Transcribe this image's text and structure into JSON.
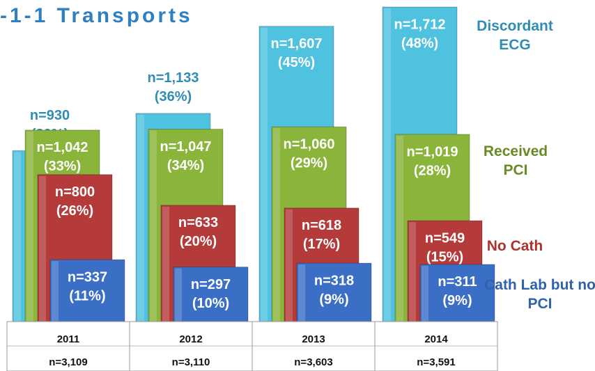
{
  "chart_data": {
    "type": "bar",
    "title": "-1-1 Transports",
    "categories": [
      "2011",
      "2012",
      "2013",
      "2014"
    ],
    "totals": [
      "n=3,109",
      "n=3,110",
      "n=3,603",
      "n=3,591"
    ],
    "ylim": [
      0,
      1750
    ],
    "series": [
      {
        "name": "Discordant ECG",
        "color": "#4fc2df",
        "label_color": "#2f8db3",
        "values": [
          930,
          1133,
          1607,
          1712
        ],
        "value_labels": [
          [
            "n=930",
            "(30%)"
          ],
          [
            "n=1,133",
            "(36%)"
          ],
          [
            "n=1,607",
            "(45%)"
          ],
          [
            "n=1,712",
            "(48%)"
          ]
        ]
      },
      {
        "name": "Received PCI",
        "color": "#8ab43a",
        "label_color": "#6a8a26",
        "values": [
          1042,
          1047,
          1060,
          1019
        ],
        "value_labels": [
          [
            "n=1,042",
            "(33%)"
          ],
          [
            "n=1,047",
            "(34%)"
          ],
          [
            "n=1,060",
            "(29%)"
          ],
          [
            "n=1,019",
            "(28%)"
          ]
        ]
      },
      {
        "name": "No Cath",
        "color": "#b53a3a",
        "label_color": "#b03030",
        "values": [
          800,
          633,
          618,
          549
        ],
        "value_labels": [
          [
            "n=800",
            "(26%)"
          ],
          [
            "n=633",
            "(20%)"
          ],
          [
            "n=618",
            "(17%)"
          ],
          [
            "n=549",
            "(15%)"
          ]
        ]
      },
      {
        "name": "Cath Lab but no PCI",
        "color": "#3b6fc6",
        "label_color": "#3062aa",
        "values": [
          337,
          297,
          318,
          311
        ],
        "value_labels": [
          [
            "n=337",
            "(11%)"
          ],
          [
            "n=297",
            "(10%)"
          ],
          [
            "n=318",
            "(9%)"
          ],
          [
            "n=311",
            "(9%)"
          ]
        ]
      }
    ]
  }
}
